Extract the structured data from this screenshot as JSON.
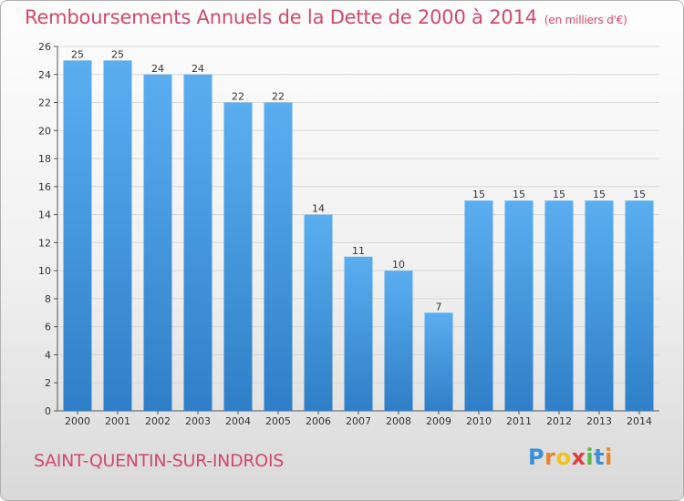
{
  "title": "Remboursements Annuels de la Dette de 2000 à 2014",
  "subtitle": "(en milliers d'€)",
  "commune": "SAINT-QUENTIN-SUR-INDROIS",
  "logo": {
    "letters": [
      "P",
      "r",
      "o",
      "x",
      "i",
      "t",
      "i"
    ],
    "colors": [
      "#3a8fd8",
      "#e8852a",
      "#f2c319",
      "#e43c3c",
      "#58b947",
      "#3a8fd8",
      "#e8852a"
    ]
  },
  "colors": {
    "bar_light": "#5aaef0",
    "bar_dark": "#2f7fc8",
    "title": "#d2496a",
    "grid": "#d8d8d8"
  },
  "chart_data": {
    "type": "bar",
    "categories": [
      "2000",
      "2001",
      "2002",
      "2003",
      "2004",
      "2005",
      "2006",
      "2007",
      "2008",
      "2009",
      "2010",
      "2011",
      "2012",
      "2013",
      "2014"
    ],
    "values": [
      25,
      25,
      24,
      24,
      22,
      22,
      14,
      11,
      10,
      7,
      15,
      15,
      15,
      15,
      15
    ],
    "ylim": [
      0,
      26
    ],
    "yticks": [
      0,
      2,
      4,
      6,
      8,
      10,
      12,
      14,
      16,
      18,
      20,
      22,
      24,
      26
    ],
    "grid": true,
    "data_labels": true
  }
}
